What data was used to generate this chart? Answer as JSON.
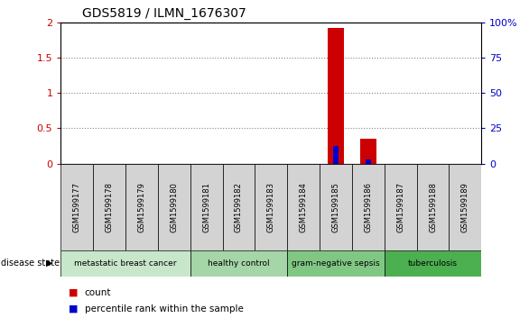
{
  "title": "GDS5819 / ILMN_1676307",
  "samples": [
    "GSM1599177",
    "GSM1599178",
    "GSM1599179",
    "GSM1599180",
    "GSM1599181",
    "GSM1599182",
    "GSM1599183",
    "GSM1599184",
    "GSM1599185",
    "GSM1599186",
    "GSM1599187",
    "GSM1599188",
    "GSM1599189"
  ],
  "count_values": [
    0,
    0,
    0,
    0,
    0,
    0,
    0,
    0,
    1.93,
    0.35,
    0,
    0,
    0
  ],
  "percentile_values": [
    0,
    0,
    0,
    0,
    0,
    0,
    0,
    0,
    12.75,
    3.0,
    0,
    0,
    0
  ],
  "ylim_left": [
    0,
    2
  ],
  "ylim_right": [
    0,
    100
  ],
  "yticks_left": [
    0,
    0.5,
    1.0,
    1.5,
    2.0
  ],
  "yticks_right": [
    0,
    25,
    50,
    75,
    100
  ],
  "ytick_labels_left": [
    "0",
    "0.5",
    "1",
    "1.5",
    "2"
  ],
  "ytick_labels_right": [
    "0",
    "25",
    "50",
    "75",
    "100%"
  ],
  "disease_groups": [
    {
      "label": "metastatic breast cancer",
      "start": 0,
      "end": 3,
      "color": "#c8e6c9"
    },
    {
      "label": "healthy control",
      "start": 4,
      "end": 6,
      "color": "#a5d6a7"
    },
    {
      "label": "gram-negative sepsis",
      "start": 7,
      "end": 9,
      "color": "#81c784"
    },
    {
      "label": "tuberculosis",
      "start": 10,
      "end": 12,
      "color": "#4caf50"
    }
  ],
  "disease_state_label": "disease state",
  "legend_count_color": "#cc0000",
  "legend_percentile_color": "#0000cc",
  "bar_color": "#cc0000",
  "percentile_color": "#0000cc",
  "grid_color": "#888888",
  "bg_color": "#ffffff",
  "sample_box_color": "#d3d3d3",
  "title_fontsize": 10,
  "tick_fontsize": 8,
  "label_fontsize": 8
}
